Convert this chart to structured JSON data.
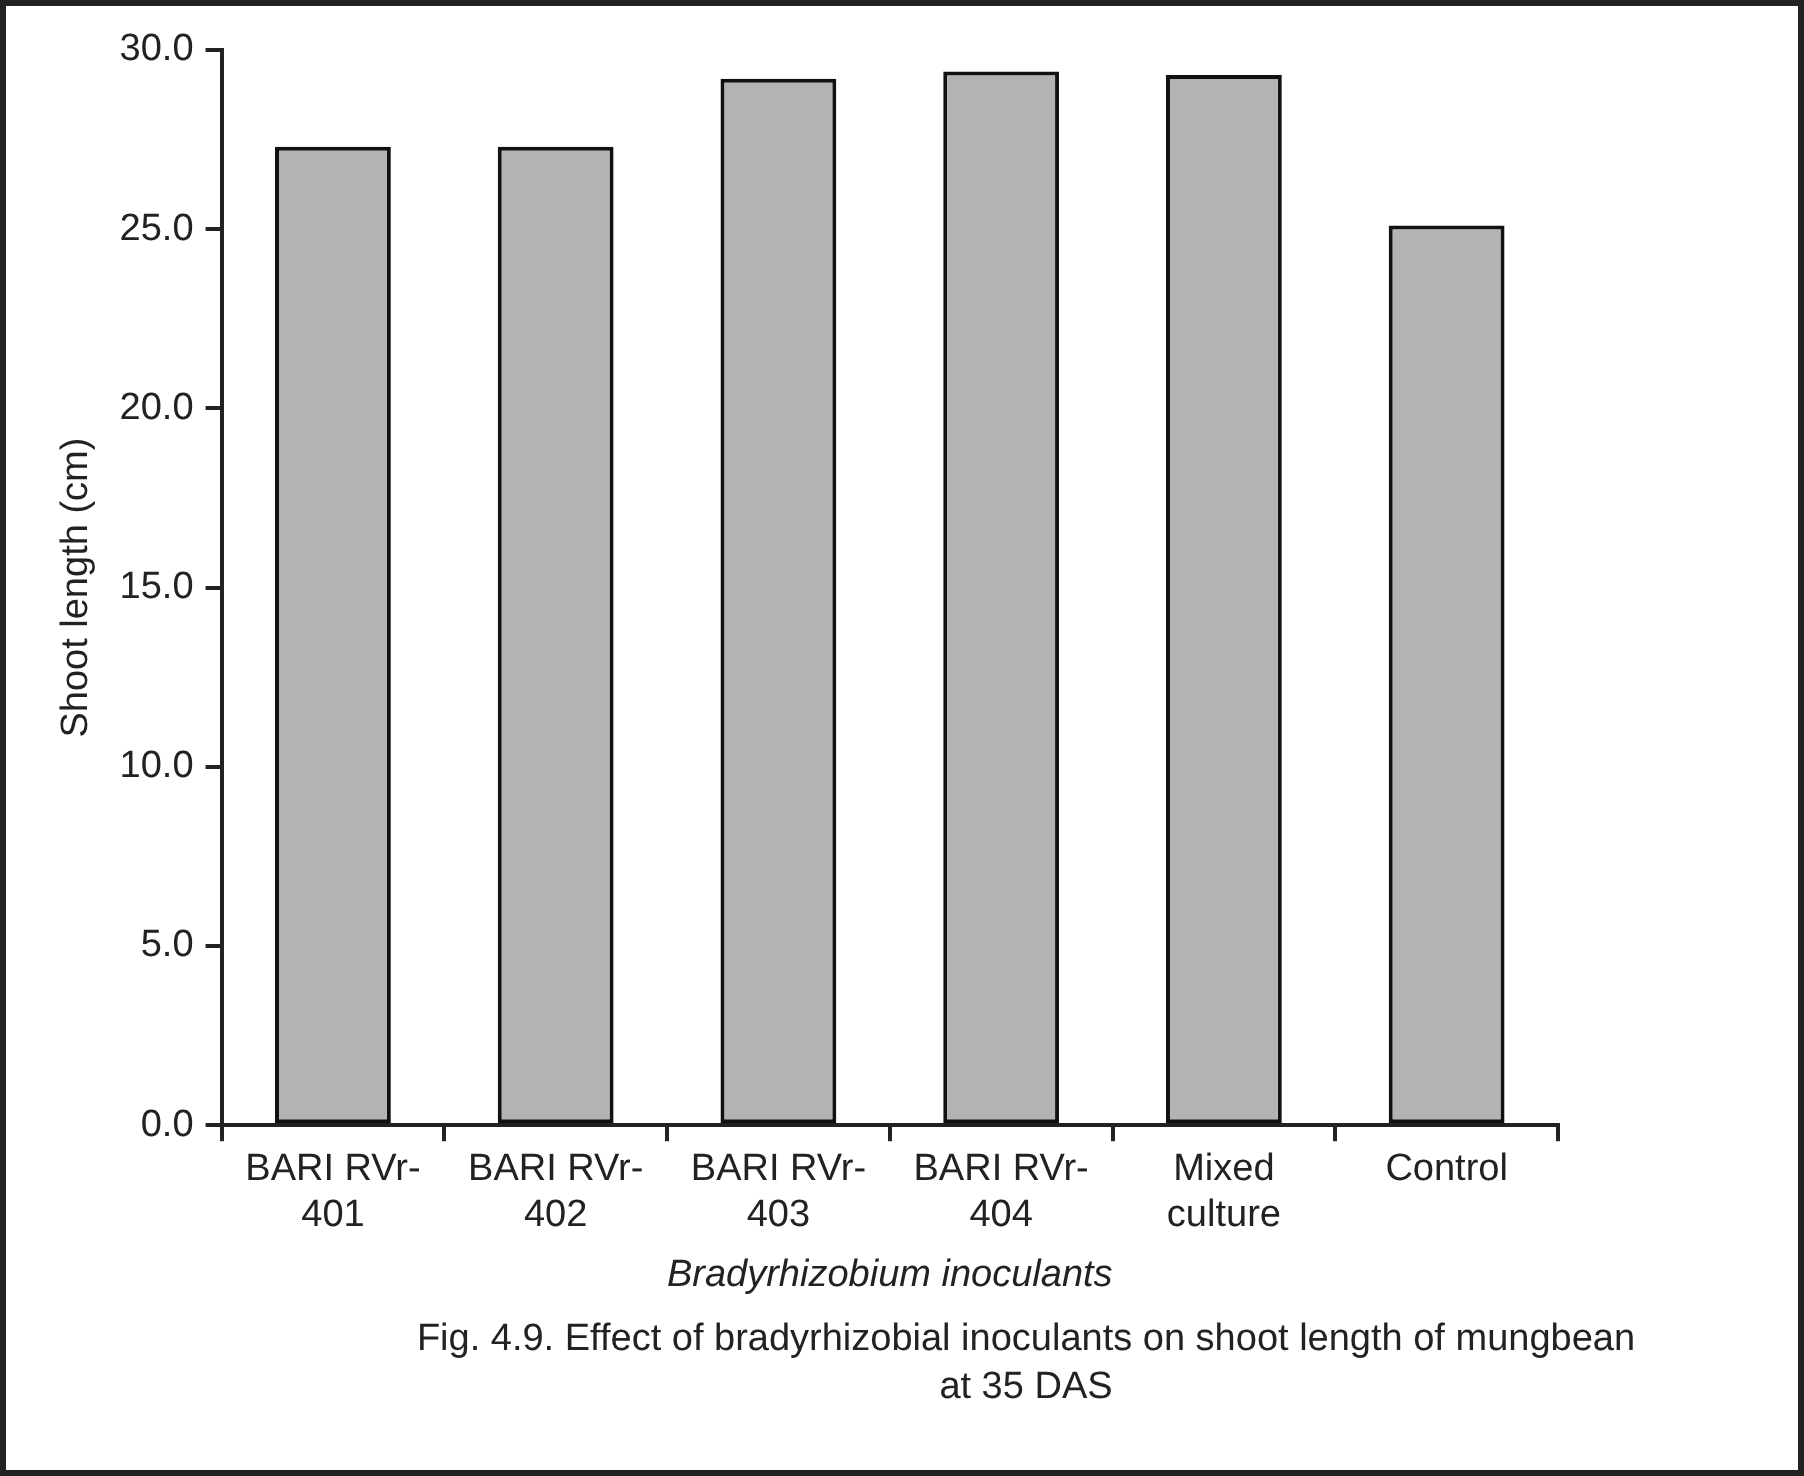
{
  "chart_data": {
    "type": "bar",
    "categories": [
      "BARI RVr-401",
      "BARI RVr-402",
      "BARI RVr-403",
      "BARI RVr-404",
      "Mixed culture",
      "Control"
    ],
    "values": [
      27.3,
      27.3,
      29.2,
      29.4,
      29.3,
      25.1
    ],
    "color": "#b3b3b3",
    "ylabel": "Shoot length (cm)",
    "xlabel": "Bradyrhizobium inoculants",
    "ylim": [
      0,
      30
    ],
    "yticks": [
      {
        "value": 0,
        "label": "0.0"
      },
      {
        "value": 5,
        "label": "5.0"
      },
      {
        "value": 10,
        "label": "10.0"
      },
      {
        "value": 15,
        "label": "15.0"
      },
      {
        "value": 20,
        "label": "20.0"
      },
      {
        "value": 25,
        "label": "25.0"
      },
      {
        "value": 30,
        "label": "30.0"
      }
    ],
    "grid": false,
    "legend": false,
    "annotations": [
      "Fig. 4.9. Effect of bradyrhizobial inoculants on shoot length of mungbean at 35 DAS"
    ]
  }
}
